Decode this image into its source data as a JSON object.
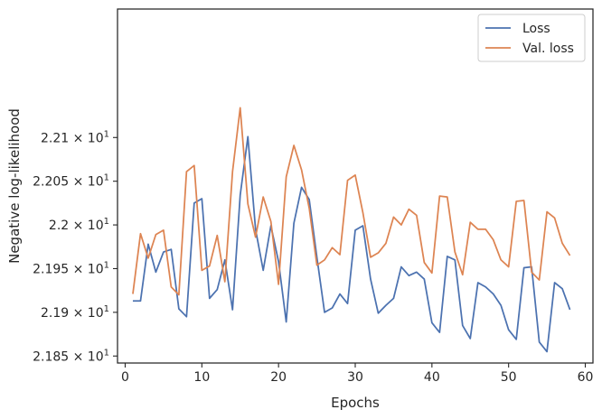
{
  "chart_data": {
    "type": "line",
    "xlabel": "Epochs",
    "ylabel": "Negative log-likelihood",
    "xlim": [
      -1,
      61
    ],
    "ylim": [
      21.842,
      22.247
    ],
    "grid": false,
    "legend_position": "top-right",
    "x_ticks": [
      0,
      10,
      20,
      30,
      40,
      50,
      60
    ],
    "x_tick_labels": [
      "0",
      "10",
      "20",
      "30",
      "40",
      "50",
      "60"
    ],
    "y_ticks": [
      21.85,
      21.9,
      21.95,
      22.0,
      22.05,
      22.1
    ],
    "y_tick_labels": [
      {
        "mantissa": "2.185",
        "exp": "1"
      },
      {
        "mantissa": "2.19",
        "exp": "1"
      },
      {
        "mantissa": "2.195",
        "exp": "1"
      },
      {
        "mantissa": "2.2",
        "exp": "1"
      },
      {
        "mantissa": "2.205",
        "exp": "1"
      },
      {
        "mantissa": "2.21",
        "exp": "1"
      }
    ],
    "y_tick_base": "10",
    "y_tick_times": "×",
    "x": [
      1,
      2,
      3,
      4,
      5,
      6,
      7,
      8,
      9,
      10,
      11,
      12,
      13,
      14,
      15,
      16,
      17,
      18,
      19,
      20,
      21,
      22,
      23,
      24,
      25,
      26,
      27,
      28,
      29,
      30,
      31,
      32,
      33,
      34,
      35,
      36,
      37,
      38,
      39,
      40,
      41,
      42,
      43,
      44,
      45,
      46,
      47,
      48,
      49,
      50,
      51,
      52,
      53,
      54,
      55,
      56,
      57,
      58
    ],
    "series": [
      {
        "name": "Loss",
        "color": "#4c72b0",
        "values": [
          21.913,
          21.913,
          21.978,
          21.946,
          21.969,
          21.972,
          21.904,
          21.895,
          22.025,
          22.03,
          21.916,
          21.926,
          21.96,
          21.903,
          22.034,
          22.101,
          21.995,
          21.948,
          21.999,
          21.958,
          21.889,
          22.002,
          22.043,
          22.029,
          21.963,
          21.9,
          21.905,
          21.921,
          21.91,
          21.994,
          21.999,
          21.938,
          21.899,
          21.908,
          21.916,
          21.952,
          21.942,
          21.946,
          21.938,
          21.888,
          21.877,
          21.964,
          21.96,
          21.885,
          21.87,
          21.934,
          21.929,
          21.921,
          21.908,
          21.88,
          21.869,
          21.951,
          21.952,
          21.866,
          21.855,
          21.934,
          21.927,
          21.903
        ]
      },
      {
        "name": "Val. loss",
        "color": "#dd8452",
        "values": [
          21.921,
          21.99,
          21.962,
          21.989,
          21.994,
          21.929,
          21.92,
          22.061,
          22.068,
          21.948,
          21.953,
          21.988,
          21.935,
          22.061,
          22.134,
          22.024,
          21.986,
          22.032,
          22.004,
          21.932,
          22.055,
          22.091,
          22.063,
          22.019,
          21.954,
          21.96,
          21.974,
          21.966,
          22.051,
          22.057,
          22.014,
          21.963,
          21.968,
          21.979,
          22.009,
          22.0,
          22.018,
          22.011,
          21.957,
          21.945,
          22.033,
          22.032,
          21.969,
          21.943,
          22.003,
          21.995,
          21.995,
          21.983,
          21.96,
          21.952,
          22.027,
          22.028,
          21.946,
          21.937,
          22.015,
          22.008,
          21.979,
          21.965
        ]
      }
    ]
  }
}
